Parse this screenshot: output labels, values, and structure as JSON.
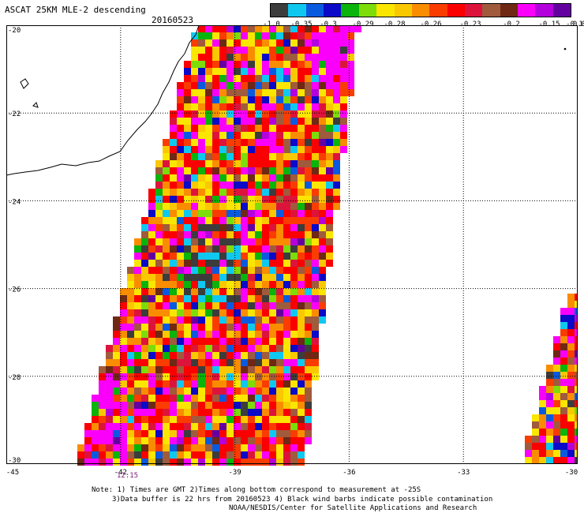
{
  "title": "ASCAT 25KM MLE-2 descending",
  "date": "20160523",
  "colorbar": {
    "colors": [
      "#3c3c3c",
      "#0fc8f0",
      "#0a5ae0",
      "#0a0ac8",
      "#0ab40a",
      "#7ddc0a",
      "#fae600",
      "#fac800",
      "#fa8c00",
      "#fa3c00",
      "#fa0000",
      "#dc143c",
      "#a05a3c",
      "#6e2814",
      "#fa00fa",
      "#b400dc",
      "#6400a0"
    ],
    "labels": [
      "-1.0",
      "-0.35",
      "-0.3",
      "-0.29",
      "-0.28",
      "-0.26",
      "-0.23",
      "-0.2",
      "-0.15",
      "-0.1",
      "0.0"
    ]
  },
  "map": {
    "lon_range": [
      -45,
      -30
    ],
    "lat_range": [
      -30,
      -20
    ],
    "lon_ticks": [
      "-45",
      "-42",
      "-39",
      "-36",
      "-33",
      "-30"
    ],
    "lat_ticks": [
      "-20",
      "-22",
      "-24",
      "-26",
      "-28",
      "-30"
    ],
    "time_label": "12:15"
  },
  "notes": [
    "Note: 1) Times are GMT 2)Times along bottom correspond to measurement at -25S",
    "3)Data buffer is 22 hrs from 20160523 4) Black wind barbs indicate possible contamination",
    "NOAA/NESDIS/Center for Satellite Applications and Research"
  ]
}
